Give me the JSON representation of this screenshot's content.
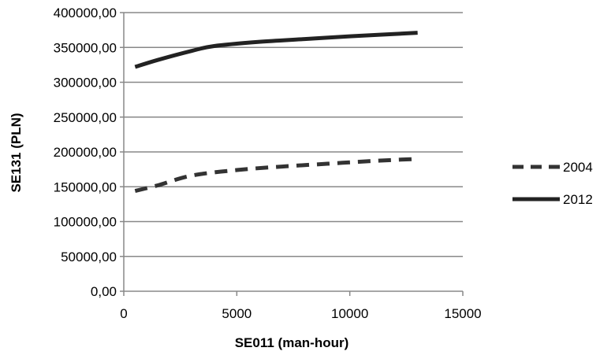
{
  "chart_data": {
    "type": "line",
    "title": "",
    "xlabel": "SE011 (man-hour)",
    "ylabel": "SE131 (PLN)",
    "xlim": [
      0,
      15000
    ],
    "ylim": [
      0,
      400000
    ],
    "x_ticks": [
      0,
      5000,
      10000,
      15000
    ],
    "x_tick_labels": [
      "0",
      "5000",
      "10000",
      "15000"
    ],
    "y_ticks": [
      0,
      50000,
      100000,
      150000,
      200000,
      250000,
      300000,
      350000,
      400000
    ],
    "y_tick_labels": [
      "0,00",
      "50000,00",
      "100000,00",
      "150000,00",
      "200000,00",
      "250000,00",
      "300000,00",
      "350000,00",
      "400000,00"
    ],
    "grid": "horizontal",
    "legend_position": "right",
    "series": [
      {
        "name": "2004",
        "style": "dashed",
        "color": "#333333",
        "points": [
          {
            "x": 500,
            "y": 144000
          },
          {
            "x": 1500,
            "y": 152000
          },
          {
            "x": 3000,
            "y": 166000
          },
          {
            "x": 5000,
            "y": 174000
          },
          {
            "x": 7000,
            "y": 179000
          },
          {
            "x": 9000,
            "y": 183000
          },
          {
            "x": 11000,
            "y": 187000
          },
          {
            "x": 13000,
            "y": 190000
          }
        ]
      },
      {
        "name": "2012",
        "style": "solid",
        "color": "#222222",
        "points": [
          {
            "x": 500,
            "y": 322000
          },
          {
            "x": 1500,
            "y": 332000
          },
          {
            "x": 3000,
            "y": 345000
          },
          {
            "x": 4000,
            "y": 352000
          },
          {
            "x": 6000,
            "y": 358000
          },
          {
            "x": 8000,
            "y": 362000
          },
          {
            "x": 10000,
            "y": 366000
          },
          {
            "x": 13000,
            "y": 371000
          }
        ]
      }
    ]
  }
}
